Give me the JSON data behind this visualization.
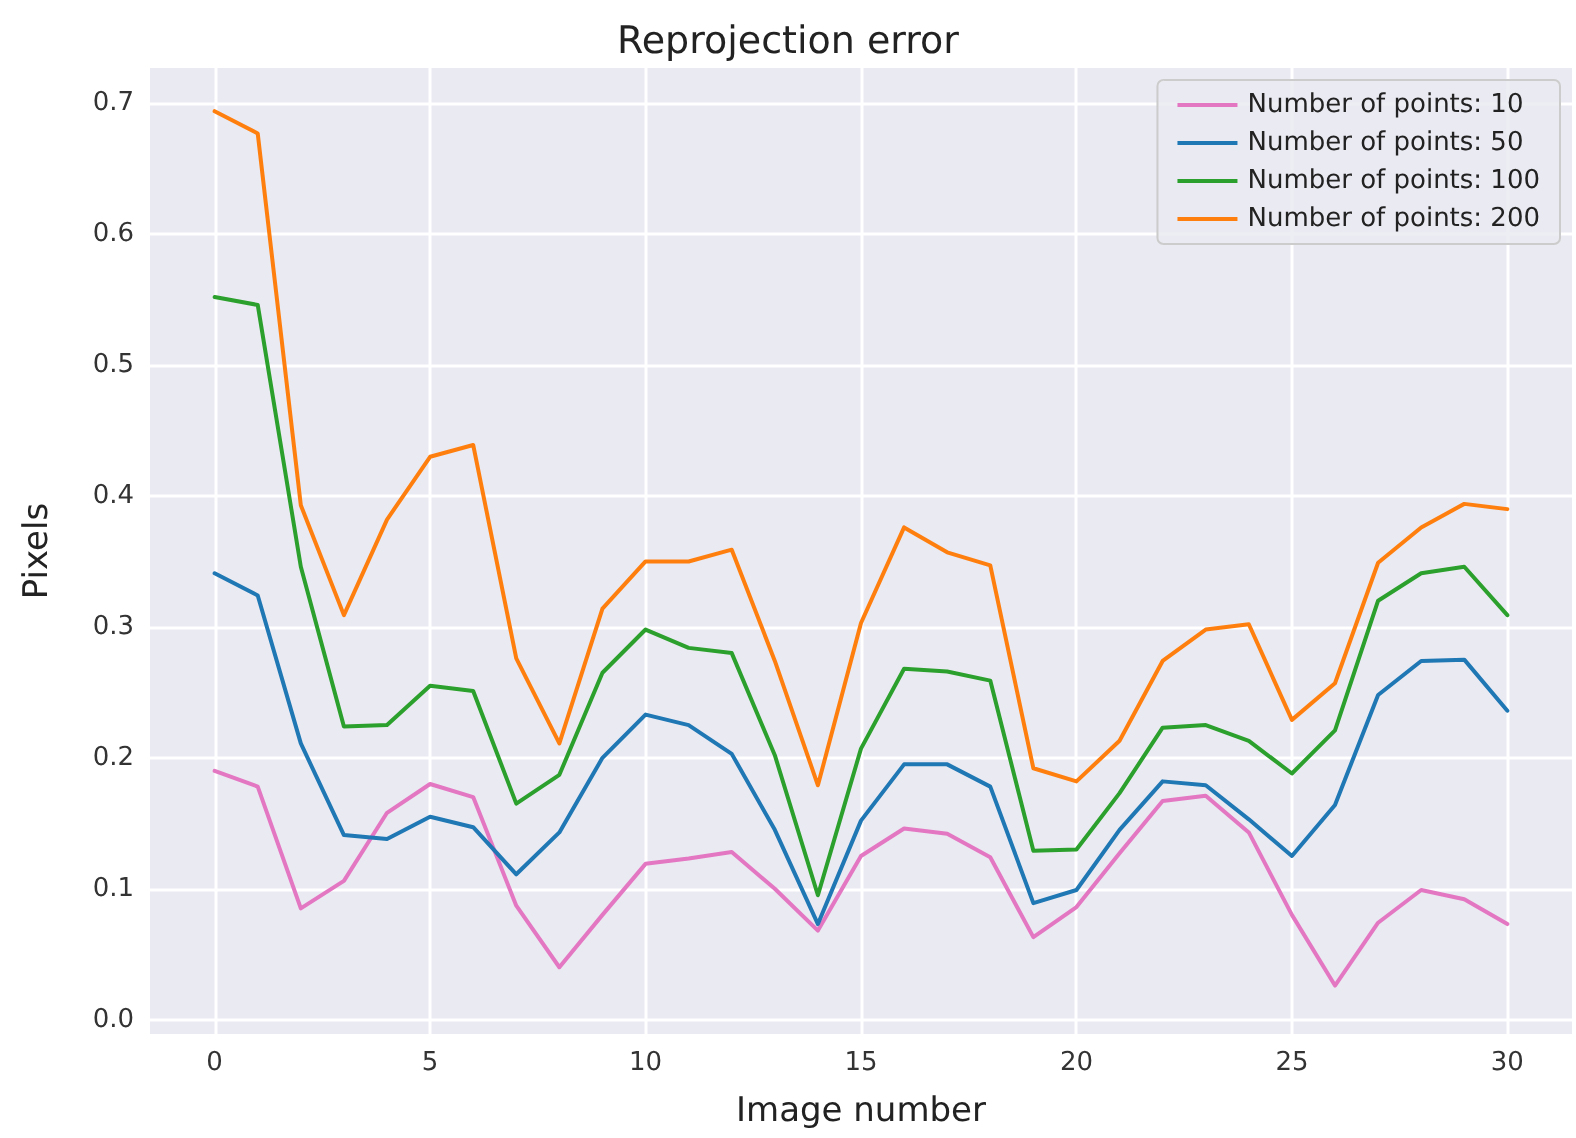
{
  "chart_data": {
    "type": "line",
    "title": "Reprojection error",
    "xlabel": "Image number",
    "ylabel": "Pixels",
    "x": [
      0,
      1,
      2,
      3,
      4,
      5,
      6,
      7,
      8,
      9,
      10,
      11,
      12,
      13,
      14,
      15,
      16,
      17,
      18,
      19,
      20,
      21,
      22,
      23,
      24,
      25,
      26,
      27,
      28,
      29,
      30
    ],
    "series": [
      {
        "name": "Number of points: 10",
        "color": "#e377c2",
        "values": [
          0.19,
          0.178,
          0.085,
          0.106,
          0.158,
          0.18,
          0.17,
          0.087,
          0.04,
          0.08,
          0.119,
          0.123,
          0.128,
          0.1,
          0.068,
          0.125,
          0.146,
          0.142,
          0.124,
          0.063,
          0.086,
          0.127,
          0.167,
          0.171,
          0.143,
          0.08,
          0.026,
          0.074,
          0.099,
          0.092,
          0.073
        ]
      },
      {
        "name": "Number of points: 50",
        "color": "#1f77b4",
        "values": [
          0.341,
          0.324,
          0.211,
          0.141,
          0.138,
          0.155,
          0.147,
          0.111,
          0.143,
          0.2,
          0.233,
          0.225,
          0.203,
          0.145,
          0.073,
          0.152,
          0.195,
          0.195,
          0.178,
          0.089,
          0.099,
          0.145,
          0.182,
          0.179,
          0.153,
          0.125,
          0.164,
          0.248,
          0.274,
          0.275,
          0.236
        ]
      },
      {
        "name": "Number of points: 100",
        "color": "#2ca02c",
        "values": [
          0.552,
          0.546,
          0.346,
          0.224,
          0.225,
          0.255,
          0.251,
          0.165,
          0.187,
          0.265,
          0.298,
          0.284,
          0.28,
          0.202,
          0.095,
          0.207,
          0.268,
          0.266,
          0.259,
          0.129,
          0.13,
          0.173,
          0.223,
          0.225,
          0.213,
          0.188,
          0.221,
          0.32,
          0.341,
          0.346,
          0.309
        ]
      },
      {
        "name": "Number of points: 200",
        "color": "#ff7f0e",
        "values": [
          0.694,
          0.677,
          0.393,
          0.309,
          0.382,
          0.43,
          0.439,
          0.276,
          0.211,
          0.314,
          0.35,
          0.35,
          0.359,
          0.274,
          0.179,
          0.303,
          0.376,
          0.357,
          0.347,
          0.192,
          0.182,
          0.213,
          0.274,
          0.298,
          0.302,
          0.229,
          0.257,
          0.349,
          0.376,
          0.394,
          0.39
        ]
      }
    ],
    "xlim": [
      -1.5,
      31.5
    ],
    "xticks": [
      0,
      5,
      10,
      15,
      20,
      25,
      30
    ],
    "ylim": [
      -0.011,
      0.727
    ],
    "yticks": [
      {
        "value": 0,
        "label": "0.0"
      },
      0.1,
      0.2,
      0.3,
      0.4,
      0.5,
      0.6,
      0.7
    ],
    "grid": true,
    "legend": "top right",
    "marker": "none",
    "line_style": "solid"
  }
}
